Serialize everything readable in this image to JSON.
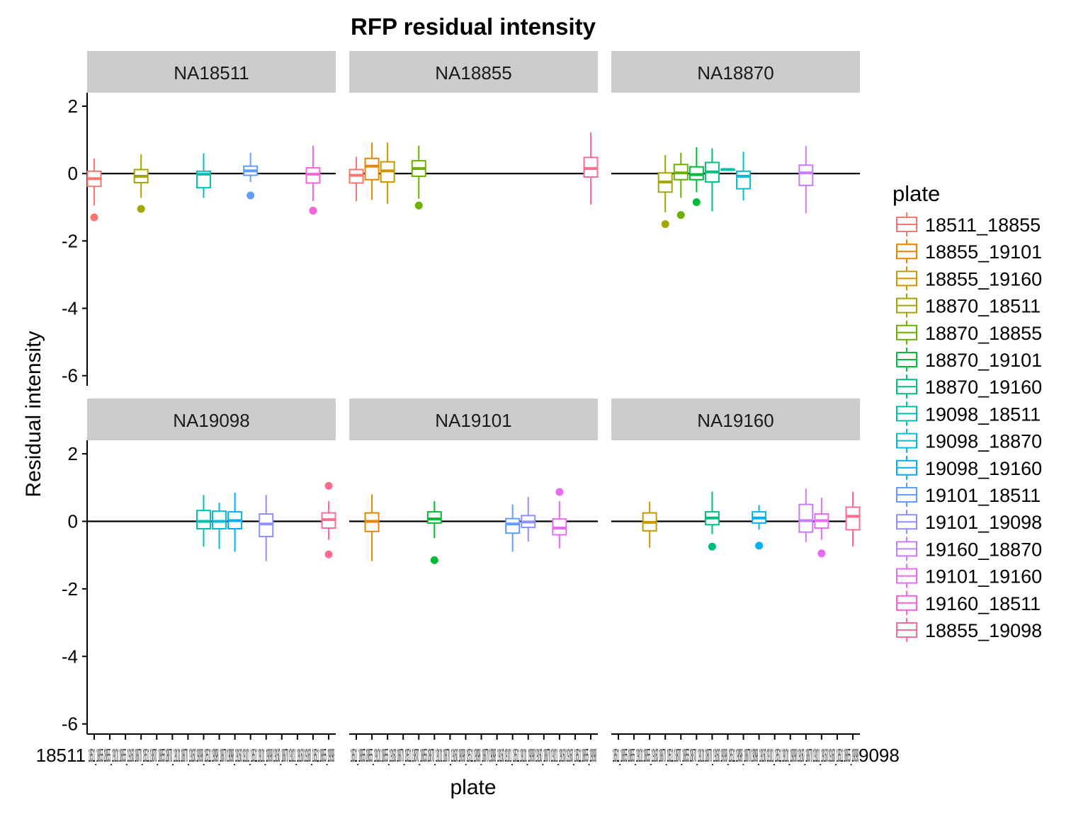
{
  "chart_data": {
    "type": "boxplot",
    "title": "RFP residual intensity",
    "xlabel": "plate",
    "ylabel": "Residual intensity",
    "ylim": [
      -6.3,
      2.4
    ],
    "yticks": [
      2,
      0,
      -2,
      -4,
      -6
    ],
    "yticklabels": [
      "2",
      "0",
      "-2",
      "-4",
      "-6"
    ],
    "reference_line": 0,
    "x_tick_labels_overlapping": "18511_18855 18855_19101 18855_19160 18870_18511 18870_18855 18870_19101 18870_19160 19098_18511 19098_18870 19098_19160 19101_18511 19101_19098 19160_18870 19101_19160 19160_18511 18855_19098",
    "x_tick_label_visible_tail": "18511",
    "x_tick_label_last_panel_tail": "9098",
    "plates": [
      "18511_18855",
      "18855_19101",
      "18855_19160",
      "18870_18511",
      "18870_18855",
      "18870_19101",
      "18870_19160",
      "19098_18511",
      "19098_18870",
      "19098_19160",
      "19101_18511",
      "19101_19098",
      "19160_18870",
      "19101_19160",
      "19160_18511",
      "18855_19098"
    ],
    "colors": [
      "#F8766D",
      "#E58700",
      "#C99800",
      "#A3A500",
      "#6BB100",
      "#00BA38",
      "#00BF7D",
      "#00C0AF",
      "#00BCD8",
      "#00B0F6",
      "#619CFF",
      "#8F8FFF",
      "#C77CFF",
      "#E76BF3",
      "#FA62DB",
      "#FF6C91"
    ],
    "legend": {
      "title": "plate",
      "position": "right",
      "entries": [
        "18511_18855",
        "18855_19101",
        "18855_19160",
        "18870_18511",
        "18870_18855",
        "18870_19101",
        "18870_19160",
        "19098_18511",
        "19098_18870",
        "19098_19160",
        "19101_18511",
        "19101_19098",
        "19160_18870",
        "19101_19160",
        "19160_18511",
        "18855_19098"
      ]
    },
    "panels": [
      {
        "label": "NA18511",
        "boxes": [
          {
            "plate": 0,
            "lo": -0.95,
            "q1": -0.38,
            "med": -0.15,
            "q3": 0.07,
            "hi": 0.45,
            "out": [
              -1.3
            ]
          },
          {
            "plate": 3,
            "lo": -0.72,
            "q1": -0.27,
            "med": -0.08,
            "q3": 0.12,
            "hi": 0.57,
            "out": [
              -1.05
            ]
          },
          {
            "plate": 7,
            "lo": -0.72,
            "q1": -0.42,
            "med": -0.02,
            "q3": 0.07,
            "hi": 0.6,
            "out": []
          },
          {
            "plate": 10,
            "lo": -0.25,
            "q1": -0.05,
            "med": 0.08,
            "q3": 0.22,
            "hi": 0.62,
            "out": [
              -0.65
            ]
          },
          {
            "plate": 14,
            "lo": -0.82,
            "q1": -0.28,
            "med": -0.02,
            "q3": 0.17,
            "hi": 0.83,
            "out": [
              -1.1
            ]
          }
        ]
      },
      {
        "label": "NA18855",
        "boxes": [
          {
            "plate": 0,
            "lo": -0.82,
            "q1": -0.28,
            "med": -0.05,
            "q3": 0.12,
            "hi": 0.5,
            "out": []
          },
          {
            "plate": 1,
            "lo": -0.78,
            "q1": -0.18,
            "med": 0.22,
            "q3": 0.45,
            "hi": 0.92,
            "out": []
          },
          {
            "plate": 2,
            "lo": -0.9,
            "q1": -0.25,
            "med": 0.08,
            "q3": 0.35,
            "hi": 0.92,
            "out": []
          },
          {
            "plate": 4,
            "lo": -0.75,
            "q1": -0.08,
            "med": 0.15,
            "q3": 0.38,
            "hi": 0.83,
            "out": [
              -0.95
            ]
          },
          {
            "plate": 15,
            "lo": -0.92,
            "q1": -0.1,
            "med": 0.15,
            "q3": 0.48,
            "hi": 1.22,
            "out": []
          }
        ]
      },
      {
        "label": "NA18870",
        "boxes": [
          {
            "plate": 3,
            "lo": -1.15,
            "q1": -0.55,
            "med": -0.25,
            "q3": 0.02,
            "hi": 0.55,
            "out": [
              -1.5
            ]
          },
          {
            "plate": 4,
            "lo": -0.72,
            "q1": -0.18,
            "med": 0.02,
            "q3": 0.27,
            "hi": 0.62,
            "out": [
              -1.23
            ]
          },
          {
            "plate": 5,
            "lo": -0.55,
            "q1": -0.18,
            "med": -0.03,
            "q3": 0.2,
            "hi": 0.78,
            "out": [
              -0.85
            ]
          },
          {
            "plate": 6,
            "lo": -1.12,
            "q1": -0.25,
            "med": 0.05,
            "q3": 0.33,
            "hi": 0.75,
            "out": []
          },
          {
            "plate": 7,
            "lo": 0.12,
            "q1": 0.12,
            "med": 0.12,
            "q3": 0.12,
            "hi": 0.12,
            "out": []
          },
          {
            "plate": 8,
            "lo": -0.8,
            "q1": -0.45,
            "med": -0.08,
            "q3": 0.07,
            "hi": 0.65,
            "out": []
          },
          {
            "plate": 12,
            "lo": -1.18,
            "q1": -0.35,
            "med": 0.02,
            "q3": 0.25,
            "hi": 0.82,
            "out": []
          }
        ]
      },
      {
        "label": "NA19098",
        "boxes": [
          {
            "plate": 7,
            "lo": -0.75,
            "q1": -0.22,
            "med": 0.0,
            "q3": 0.32,
            "hi": 0.78,
            "out": []
          },
          {
            "plate": 8,
            "lo": -0.82,
            "q1": -0.22,
            "med": 0.0,
            "q3": 0.3,
            "hi": 0.55,
            "out": []
          },
          {
            "plate": 9,
            "lo": -0.9,
            "q1": -0.22,
            "med": 0.02,
            "q3": 0.28,
            "hi": 0.85,
            "out": []
          },
          {
            "plate": 11,
            "lo": -1.18,
            "q1": -0.45,
            "med": -0.08,
            "q3": 0.22,
            "hi": 0.78,
            "out": []
          },
          {
            "plate": 15,
            "lo": -0.55,
            "q1": -0.2,
            "med": 0.05,
            "q3": 0.25,
            "hi": 0.6,
            "out": [
              1.05,
              -0.98
            ]
          }
        ]
      },
      {
        "label": "NA19101",
        "boxes": [
          {
            "plate": 1,
            "lo": -1.18,
            "q1": -0.3,
            "med": 0.0,
            "q3": 0.25,
            "hi": 0.8,
            "out": []
          },
          {
            "plate": 5,
            "lo": -0.5,
            "q1": -0.05,
            "med": 0.07,
            "q3": 0.28,
            "hi": 0.6,
            "out": [
              -1.15
            ]
          },
          {
            "plate": 10,
            "lo": -0.9,
            "q1": -0.35,
            "med": -0.08,
            "q3": 0.08,
            "hi": 0.5,
            "out": []
          },
          {
            "plate": 11,
            "lo": -0.6,
            "q1": -0.18,
            "med": -0.02,
            "q3": 0.17,
            "hi": 0.72,
            "out": []
          },
          {
            "plate": 13,
            "lo": -0.8,
            "q1": -0.4,
            "med": -0.2,
            "q3": 0.07,
            "hi": 0.6,
            "out": [
              0.87
            ]
          }
        ]
      },
      {
        "label": "NA19160",
        "boxes": [
          {
            "plate": 2,
            "lo": -0.78,
            "q1": -0.28,
            "med": -0.03,
            "q3": 0.25,
            "hi": 0.58,
            "out": []
          },
          {
            "plate": 6,
            "lo": -0.38,
            "q1": -0.1,
            "med": 0.1,
            "q3": 0.28,
            "hi": 0.88,
            "out": [
              -0.75
            ]
          },
          {
            "plate": 9,
            "lo": -0.25,
            "q1": -0.05,
            "med": 0.1,
            "q3": 0.28,
            "hi": 0.48,
            "out": [
              -0.72
            ]
          },
          {
            "plate": 12,
            "lo": -0.62,
            "q1": -0.32,
            "med": 0.02,
            "q3": 0.5,
            "hi": 0.97,
            "out": []
          },
          {
            "plate": 13,
            "lo": -0.55,
            "q1": -0.2,
            "med": 0.02,
            "q3": 0.22,
            "hi": 0.7,
            "out": [
              -0.95
            ]
          },
          {
            "plate": 15,
            "lo": -0.75,
            "q1": -0.25,
            "med": 0.15,
            "q3": 0.42,
            "hi": 0.88,
            "out": []
          }
        ]
      }
    ]
  }
}
